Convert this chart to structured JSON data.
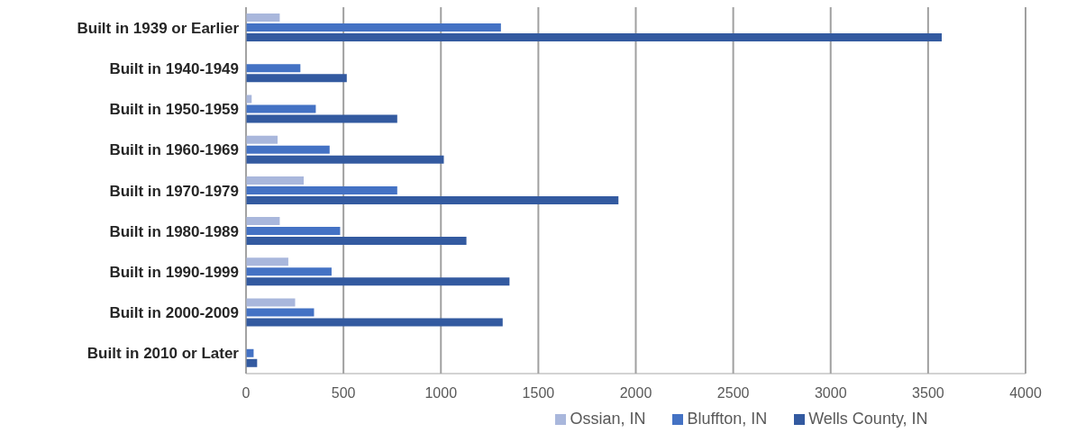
{
  "chart_data": {
    "type": "bar",
    "orientation": "horizontal",
    "categories": [
      "Built in 1939 or Earlier",
      "Built in 1940-1949",
      "Built in 1950-1959",
      "Built in 1960-1969",
      "Built in 1970-1979",
      "Built in 1980-1989",
      "Built in 1990-1999",
      "Built in 2000-2009",
      "Built in 2010 or Later"
    ],
    "series": [
      {
        "name": "Ossian, IN",
        "color": "#a9b7dc",
        "values": [
          173,
          null,
          29,
          162,
          296,
          173,
          217,
          252,
          null
        ]
      },
      {
        "name": "Bluffton, IN",
        "color": "#4472c4",
        "values": [
          1308,
          279,
          358,
          429,
          776,
          483,
          439,
          349,
          39
        ]
      },
      {
        "name": "Wells County, IN",
        "color": "#335aa0",
        "values": [
          3570,
          517,
          776,
          1015,
          1911,
          1131,
          1352,
          1317,
          57
        ]
      }
    ],
    "xlim": [
      0,
      4000
    ],
    "xticks": [
      0,
      500,
      1000,
      1500,
      2000,
      2500,
      3000,
      3500,
      4000
    ],
    "grid": "x",
    "legend": "bottom"
  }
}
